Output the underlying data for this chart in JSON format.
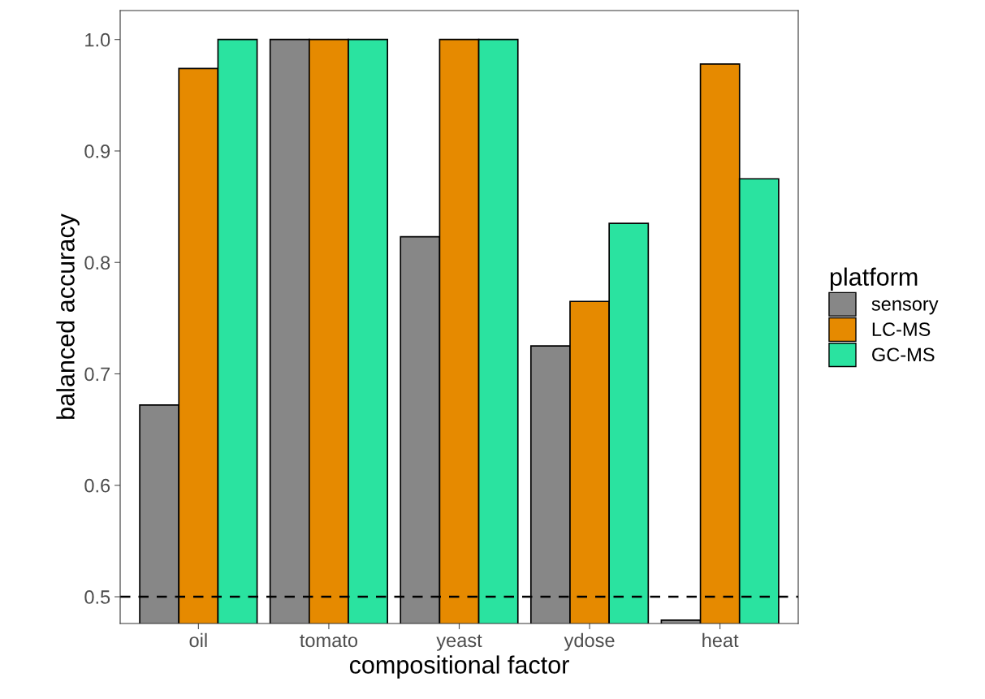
{
  "chart_data": {
    "type": "bar",
    "xlabel": "compositional factor",
    "ylabel": "balanced accuracy",
    "legend_title": "platform",
    "categories": [
      "oil",
      "tomato",
      "yeast",
      "ydose",
      "heat"
    ],
    "series": [
      {
        "name": "sensory",
        "color": "#878787",
        "values": [
          0.672,
          1.0,
          0.823,
          0.725,
          0.479
        ]
      },
      {
        "name": "LC-MS",
        "color": "#e68a00",
        "values": [
          0.974,
          1.0,
          1.0,
          0.765,
          0.978
        ]
      },
      {
        "name": "GC-MS",
        "color": "#2ae3a0",
        "values": [
          1.0,
          1.0,
          1.0,
          0.835,
          0.875
        ]
      }
    ],
    "ylim": [
      0.476,
      1.026
    ],
    "yticks": [
      {
        "value": 0.5,
        "label": "0.5"
      },
      {
        "value": 0.6,
        "label": "0.6"
      },
      {
        "value": 0.7,
        "label": "0.7"
      },
      {
        "value": 0.8,
        "label": "0.8"
      },
      {
        "value": 0.9,
        "label": "0.9"
      },
      {
        "value": 1.0,
        "label": "1.0"
      }
    ],
    "ref_lines": [
      {
        "axis": "y",
        "value": 0.5,
        "label": null,
        "color": "#000000",
        "line_style": "dashed"
      }
    ],
    "grid": false,
    "legend": "right"
  }
}
